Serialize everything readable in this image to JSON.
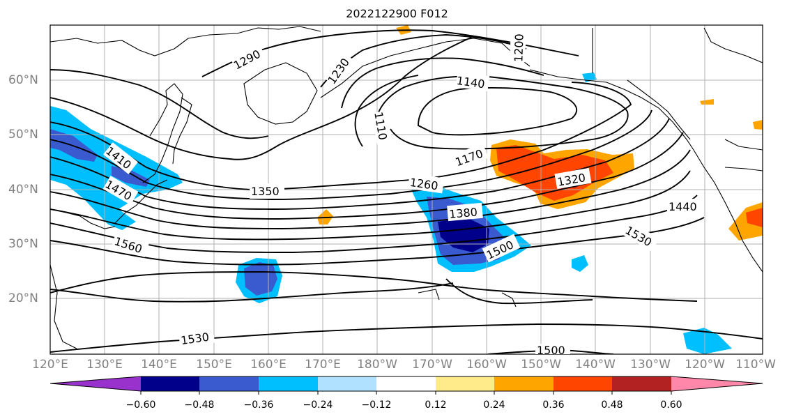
{
  "title": "2022122900 F012",
  "lon_labels": [
    "120°E",
    "130°E",
    "140°E",
    "150°E",
    "160°E",
    "170°E",
    "180°W",
    "170°W",
    "160°W",
    "150°W",
    "140°W",
    "130°W",
    "120°W",
    "110°W"
  ],
  "lat_labels": [
    "60°N",
    "50°N",
    "40°N",
    "30°N",
    "20°N"
  ],
  "contour_labels": [
    "1290",
    "1230",
    "1200",
    "1140",
    "1110",
    "1170",
    "1410",
    "1470",
    "1350",
    "1260",
    "1380",
    "1320",
    "1440",
    "1560",
    "1500",
    "1530",
    "1530",
    "1500"
  ],
  "colorbar": {
    "colors": [
      "#9932cc",
      "#00008b",
      "#3a5bd0",
      "#00bfff",
      "#b0e2ff",
      "#ffffff",
      "#ffeb8a",
      "#ffa500",
      "#ff4500",
      "#b22222",
      "#ff88aa"
    ],
    "tick_labels": [
      "−0.60",
      "−0.48",
      "−0.36",
      "−0.24",
      "−0.12",
      "0.12",
      "0.24",
      "0.36",
      "0.48",
      "0.60"
    ]
  },
  "colors": {
    "contour": "#000000",
    "grid": "#b0b0b0",
    "coast": "#000000",
    "axis_label": "#808080"
  }
}
